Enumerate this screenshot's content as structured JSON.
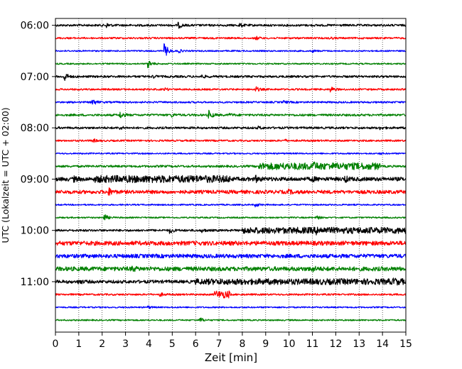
{
  "chart_data": {
    "type": "line",
    "title": "",
    "xlabel": "Zeit  [min]",
    "ylabel": "UTC (Lokalzeit = UTC + 02:00)",
    "xlim": [
      0,
      15
    ],
    "x_ticks": [
      0,
      1,
      2,
      3,
      4,
      5,
      6,
      7,
      8,
      9,
      10,
      11,
      12,
      13,
      14,
      15
    ],
    "y_time_range": [
      "05:52",
      "11:59"
    ],
    "y_ticks": [
      "06:00",
      "07:00",
      "08:00",
      "09:00",
      "10:00",
      "11:00"
    ],
    "grid": {
      "vertical": "dotted",
      "horizontal": false
    },
    "trace_interval_minutes": 15,
    "color_cycle": [
      "#000000",
      "#ff0000",
      "#0000ff",
      "#008000"
    ],
    "traces": [
      {
        "start": "06:00",
        "color": "#000000",
        "noise": 0.3,
        "events": [
          {
            "t": 2.2,
            "amp": 0.5
          },
          {
            "t": 5.3,
            "amp": 0.6
          },
          {
            "t": 7.9,
            "amp": 0.4
          }
        ]
      },
      {
        "start": "06:15",
        "color": "#ff0000",
        "noise": 0.25,
        "events": [
          {
            "t": 8.6,
            "amp": 0.4
          },
          {
            "t": 11.7,
            "amp": 0.3
          }
        ]
      },
      {
        "start": "06:30",
        "color": "#0000ff",
        "noise": 0.2,
        "events": [
          {
            "t": 4.7,
            "amp": 1.9
          },
          {
            "t": 5.3,
            "amp": 0.4
          },
          {
            "t": 11.0,
            "amp": 0.3
          }
        ]
      },
      {
        "start": "06:45",
        "color": "#008000",
        "noise": 0.2,
        "events": [
          {
            "t": 4.0,
            "amp": 1.0
          }
        ]
      },
      {
        "start": "07:00",
        "color": "#000000",
        "noise": 0.3,
        "events": [
          {
            "t": 0.4,
            "amp": 1.1
          },
          {
            "t": 4.2,
            "amp": 0.3
          },
          {
            "t": 6.3,
            "amp": 0.3
          }
        ]
      },
      {
        "start": "07:15",
        "color": "#ff0000",
        "noise": 0.25,
        "events": [
          {
            "t": 4.7,
            "amp": 0.3
          },
          {
            "t": 8.6,
            "amp": 0.6
          },
          {
            "t": 11.8,
            "amp": 0.7
          }
        ]
      },
      {
        "start": "07:30",
        "color": "#0000ff",
        "noise": 0.25,
        "events": [
          {
            "t": 1.6,
            "amp": 0.9
          },
          {
            "t": 9.8,
            "amp": 0.3
          }
        ]
      },
      {
        "start": "07:45",
        "color": "#008000",
        "noise": 0.3,
        "events": [
          {
            "t": 2.8,
            "amp": 0.8
          },
          {
            "t": 5.0,
            "amp": 0.4
          },
          {
            "t": 6.6,
            "amp": 1.1
          },
          {
            "t": 7.5,
            "amp": 0.3
          }
        ]
      },
      {
        "start": "08:00",
        "color": "#000000",
        "noise": 0.3,
        "events": [
          {
            "t": 2.8,
            "amp": 0.3
          },
          {
            "t": 8.7,
            "amp": 0.3
          },
          {
            "t": 13.9,
            "amp": 0.3
          }
        ]
      },
      {
        "start": "08:15",
        "color": "#ff0000",
        "noise": 0.25,
        "events": [
          {
            "t": 1.6,
            "amp": 0.5
          },
          {
            "t": 9.8,
            "amp": 0.3
          }
        ]
      },
      {
        "start": "08:30",
        "color": "#0000ff",
        "noise": 0.2,
        "events": [
          {
            "t": 13.9,
            "amp": 0.2
          }
        ]
      },
      {
        "start": "08:45",
        "color": "#008000",
        "noise": 0.3,
        "burst": {
          "from": 8.7,
          "to": 13.9,
          "amp": 0.7
        },
        "events": [
          {
            "t": 11.0,
            "amp": 0.6
          }
        ]
      },
      {
        "start": "09:00",
        "color": "#000000",
        "noise": 0.55,
        "burst": {
          "from": 1.7,
          "to": 7.5,
          "amp": 0.5
        },
        "events": [
          {
            "t": 0.8,
            "amp": 0.5
          },
          {
            "t": 8.6,
            "amp": 0.6
          },
          {
            "t": 11.0,
            "amp": 0.5
          },
          {
            "t": 12.4,
            "amp": 0.7
          }
        ]
      },
      {
        "start": "09:15",
        "color": "#ff0000",
        "noise": 0.5,
        "events": [
          {
            "t": 2.3,
            "amp": 0.8
          },
          {
            "t": 10.0,
            "amp": 0.4
          }
        ]
      },
      {
        "start": "09:30",
        "color": "#0000ff",
        "noise": 0.2,
        "events": [
          {
            "t": 8.6,
            "amp": 0.5
          }
        ]
      },
      {
        "start": "09:45",
        "color": "#008000",
        "noise": 0.2,
        "events": [
          {
            "t": 2.1,
            "amp": 1.0
          },
          {
            "t": 11.2,
            "amp": 0.5
          }
        ]
      },
      {
        "start": "10:00",
        "color": "#000000",
        "noise": 0.3,
        "burst": {
          "from": 8.0,
          "to": 15.0,
          "amp": 0.6
        },
        "events": [
          {
            "t": 4.9,
            "amp": 0.7
          },
          {
            "t": 6.3,
            "amp": 0.4
          },
          {
            "t": 11.2,
            "amp": 0.5
          }
        ]
      },
      {
        "start": "10:15",
        "color": "#ff0000",
        "noise": 0.6,
        "events": []
      },
      {
        "start": "10:30",
        "color": "#0000ff",
        "noise": 0.55,
        "events": []
      },
      {
        "start": "10:45",
        "color": "#008000",
        "noise": 0.6,
        "events": [
          {
            "t": 3.3,
            "amp": 0.5
          },
          {
            "t": 11.0,
            "amp": 0.5
          }
        ]
      },
      {
        "start": "11:00",
        "color": "#000000",
        "noise": 0.45,
        "burst": {
          "from": 6.0,
          "to": 15.0,
          "amp": 0.4
        },
        "events": [
          {
            "t": 1.0,
            "amp": 0.5
          },
          {
            "t": 14.5,
            "amp": 0.5
          }
        ]
      },
      {
        "start": "11:15",
        "color": "#ff0000",
        "noise": 0.25,
        "burst": {
          "from": 6.8,
          "to": 7.5,
          "amp": 0.8
        },
        "events": [
          {
            "t": 4.5,
            "amp": 0.4
          }
        ]
      },
      {
        "start": "11:30",
        "color": "#0000ff",
        "noise": 0.2,
        "events": [
          {
            "t": 4.0,
            "amp": 0.3
          }
        ]
      },
      {
        "start": "11:45",
        "color": "#008000",
        "noise": 0.2,
        "events": [
          {
            "t": 6.2,
            "amp": 0.7
          }
        ]
      }
    ]
  }
}
